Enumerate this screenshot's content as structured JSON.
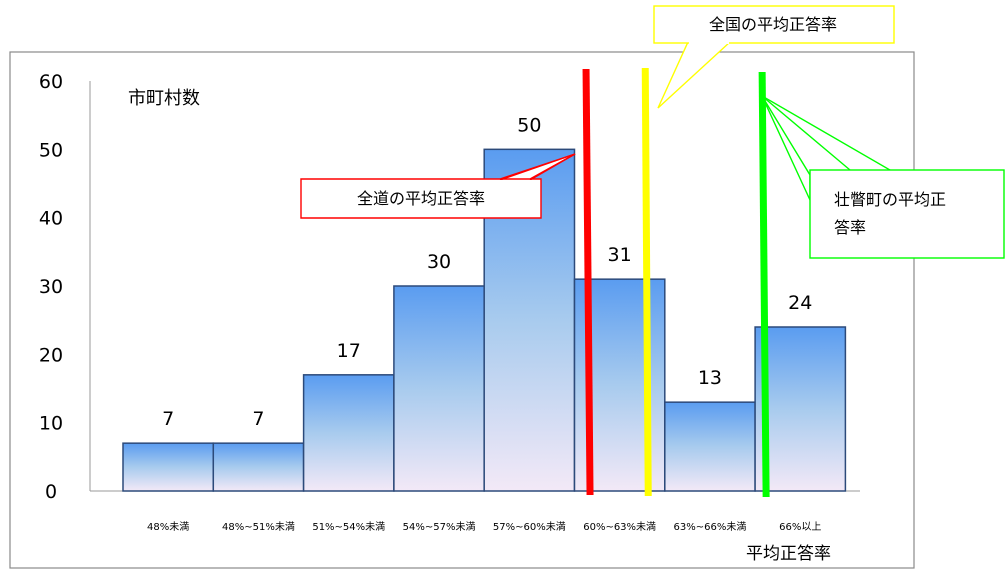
{
  "chart_data": {
    "type": "bar",
    "categories": [
      "48%未満",
      "48%~51%未満",
      "51%~54%未満",
      "54%~57%未満",
      "57%~60%未満",
      "60%~63%未満",
      "63%~66%未満",
      "66%以上"
    ],
    "values": [
      7,
      7,
      17,
      30,
      50,
      31,
      13,
      24
    ],
    "ylabel": "市町村数",
    "xlabel": "平均正答率",
    "ylim": [
      0,
      60
    ],
    "yticks": [
      0,
      10,
      20,
      30,
      40,
      50,
      60
    ],
    "grid": false,
    "bar_gradient": {
      "top": "#5a9cf0",
      "middle": "#a8cbee",
      "bottom": "#f3e9f7"
    },
    "bar_stroke": "#2c4a7a",
    "reference_lines": [
      {
        "label": "全道の平均正答率",
        "category_position": 5.15,
        "color": "#ff0000",
        "callout_border": "#ff0000"
      },
      {
        "label": "全国の平均正答率",
        "category_position": 5.8,
        "color": "#ffff00",
        "callout_border": "#ffff00"
      },
      {
        "label": "壮瞥町の平均正答率",
        "category_position": 7.1,
        "color": "#00ff00",
        "callout_border": "#00ff00"
      }
    ]
  }
}
